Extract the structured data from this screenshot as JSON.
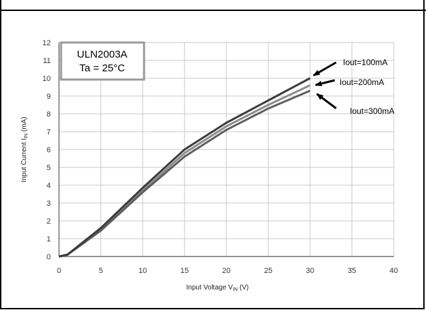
{
  "chart_data": {
    "type": "line",
    "legend_box": {
      "line1": "ULN2003A",
      "line2": "Ta = 25°C"
    },
    "xlabel": {
      "main": "Input Voltage V",
      "sub": "IN",
      "unit": " (V)"
    },
    "ylabel": {
      "main": "Input Current I",
      "sub": "IN",
      "unit": " (mA)"
    },
    "xlim": [
      0,
      40
    ],
    "ylim": [
      0,
      12
    ],
    "xticks": [
      "0",
      "5",
      "10",
      "15",
      "20",
      "25",
      "30",
      "35",
      "40"
    ],
    "yticks": [
      "0",
      "1",
      "2",
      "3",
      "4",
      "5",
      "6",
      "7",
      "8",
      "9",
      "10",
      "11",
      "12"
    ],
    "grid": true,
    "series": [
      {
        "name": "Iout=100mA",
        "color": "#3c3c3c",
        "x": [
          0,
          1,
          5,
          10,
          15,
          20,
          25,
          30
        ],
        "y": [
          0,
          0.1,
          1.6,
          3.85,
          6.0,
          7.5,
          8.75,
          10.0
        ]
      },
      {
        "name": "Iout=200mA",
        "color": "#8c8c8c",
        "x": [
          0,
          1,
          5,
          10,
          15,
          20,
          25,
          30
        ],
        "y": [
          0,
          0.1,
          1.5,
          3.7,
          5.8,
          7.3,
          8.5,
          9.6
        ]
      },
      {
        "name": "Iout=300mA",
        "color": "#5e5e5e",
        "x": [
          0,
          1,
          5,
          10,
          15,
          20,
          25,
          30
        ],
        "y": [
          0,
          0.1,
          1.45,
          3.6,
          5.6,
          7.1,
          8.3,
          9.3
        ]
      }
    ]
  }
}
